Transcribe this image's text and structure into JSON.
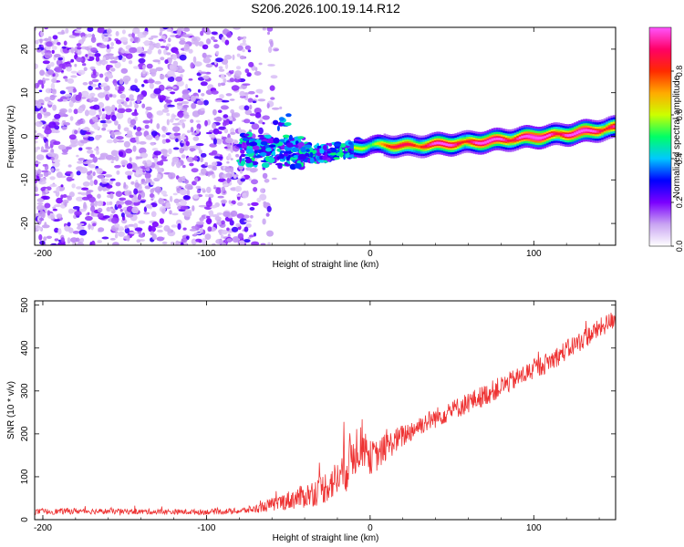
{
  "figure": {
    "title": "S206.2026.100.19.14.R12"
  },
  "chart_data": [
    {
      "type": "heatmap",
      "title": "S206.2026.100.19.14.R12",
      "xlabel": "Height of straight line (km)",
      "ylabel": "Frequency (Hz)",
      "xlim": [
        -205,
        150
      ],
      "ylim": [
        -25,
        25
      ],
      "x_ticks": [
        -200,
        -100,
        0,
        100
      ],
      "x_tick_labels": [
        "-200",
        "-100",
        "0",
        "100"
      ],
      "y_ticks": [
        -20,
        -10,
        0,
        10,
        20
      ],
      "y_tick_labels": [
        "-20",
        "-10",
        "0",
        "10",
        "20"
      ],
      "colorbar": {
        "label": "Normalized spectral amplitude",
        "range": [
          0,
          1
        ],
        "ticks": [
          0.0,
          0.2,
          0.4,
          0.6,
          0.8
        ],
        "tick_labels": [
          "0.0",
          "0.2",
          "0.4",
          "0.6",
          "0.8"
        ],
        "colors": [
          "#ffffff",
          "#c9a4f2",
          "#7b00ff",
          "#0000ff",
          "#00c8ff",
          "#00ff66",
          "#ccff00",
          "#ffaa00",
          "#ff2a00",
          "#ff0066",
          "#ff55ff"
        ]
      },
      "trace": {
        "description": "dominant frequency ridge",
        "x_km": [
          -75,
          -50,
          -30,
          -15,
          -5,
          0,
          25,
          60,
          90,
          120,
          150
        ],
        "freq_hz": [
          -3.0,
          -3.5,
          -4.0,
          -3.0,
          -2.5,
          -2.0,
          -2.2,
          -1.5,
          -0.5,
          0.5,
          2.0
        ],
        "amplitude": [
          0.25,
          0.25,
          0.3,
          0.45,
          0.55,
          0.55,
          0.8,
          0.85,
          0.9,
          0.9,
          0.85
        ]
      },
      "noise_region_x_km": [
        -205,
        -75
      ]
    },
    {
      "type": "line",
      "xlabel": "Height of straight line (km)",
      "ylabel": "SNR (10 * v/v)",
      "xlim": [
        -205,
        150
      ],
      "ylim": [
        0,
        510
      ],
      "x_ticks": [
        -200,
        -100,
        0,
        100
      ],
      "x_tick_labels": [
        "-200",
        "-100",
        "0",
        "100"
      ],
      "y_ticks": [
        0,
        100,
        200,
        300,
        400,
        500
      ],
      "y_tick_labels": [
        "0",
        "100",
        "200",
        "300",
        "400",
        "500"
      ],
      "series": [
        {
          "name": "SNR",
          "color": "#ee3333",
          "x": [
            -205,
            -180,
            -150,
            -120,
            -100,
            -80,
            -70,
            -60,
            -50,
            -40,
            -30,
            -20,
            -15,
            -10,
            -5,
            0,
            5,
            10,
            20,
            30,
            50,
            70,
            90,
            110,
            130,
            150
          ],
          "y": [
            18,
            20,
            19,
            18,
            18,
            20,
            25,
            35,
            45,
            55,
            70,
            95,
            120,
            160,
            180,
            145,
            150,
            170,
            195,
            220,
            255,
            290,
            330,
            370,
            420,
            470
          ],
          "spread": [
            8,
            9,
            8,
            8,
            8,
            9,
            12,
            20,
            28,
            35,
            45,
            55,
            75,
            80,
            70,
            50,
            45,
            40,
            35,
            30,
            30,
            32,
            30,
            30,
            30,
            28
          ]
        }
      ]
    }
  ]
}
